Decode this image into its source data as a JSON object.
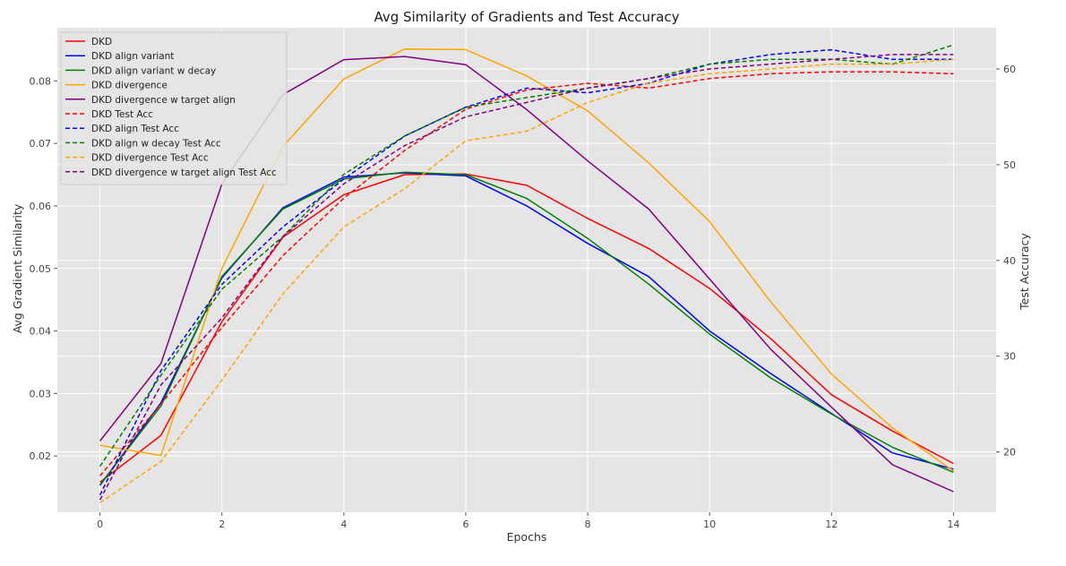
{
  "chart_data": {
    "type": "line",
    "title": "Avg Similarity of Gradients and Test Accuracy",
    "xlabel": "Epochs",
    "ylabel": "Avg Gradient Similarity",
    "ylabel_right": "Test Accuracy",
    "x": [
      0,
      1,
      2,
      3,
      4,
      5,
      6,
      7,
      8,
      9,
      10,
      11,
      12,
      13,
      14
    ],
    "xlim": [
      -0.7,
      14.7
    ],
    "ylim": [
      0.011,
      0.0885
    ],
    "ylim_right": [
      13.7,
      64.3
    ],
    "x_ticks": [
      0,
      2,
      4,
      6,
      8,
      10,
      12,
      14
    ],
    "y_ticks": [
      0.02,
      0.03,
      0.04,
      0.05,
      0.06,
      0.07,
      0.08
    ],
    "y_tick_labels": [
      "0.02",
      "0.03",
      "0.04",
      "0.05",
      "0.06",
      "0.07",
      "0.08"
    ],
    "y_right_ticks": [
      20,
      30,
      40,
      50,
      60
    ],
    "grid": true,
    "legend_position": "top-left",
    "series": [
      {
        "name": "DKD",
        "axis": "left",
        "color": "#ff0000",
        "dash": false,
        "values": [
          0.0158,
          0.0233,
          0.0415,
          0.055,
          0.0618,
          0.065,
          0.0651,
          0.0633,
          0.058,
          0.0532,
          0.0468,
          0.0388,
          0.0298,
          0.024,
          0.0188
        ]
      },
      {
        "name": "DKD align variant",
        "axis": "left",
        "color": "#0000ff",
        "dash": false,
        "values": [
          0.0153,
          0.0285,
          0.0485,
          0.0597,
          0.0646,
          0.0653,
          0.0648,
          0.06,
          0.054,
          0.0487,
          0.04,
          0.0332,
          0.0268,
          0.0205,
          0.0179
        ]
      },
      {
        "name": "DKD align variant w decay",
        "axis": "left",
        "color": "#008000",
        "dash": false,
        "values": [
          0.0154,
          0.028,
          0.0487,
          0.0595,
          0.0643,
          0.0654,
          0.065,
          0.0612,
          0.0548,
          0.0475,
          0.0395,
          0.0325,
          0.0267,
          0.0214,
          0.0174
        ]
      },
      {
        "name": "DKD divergence",
        "axis": "left",
        "color": "#ffa500",
        "dash": false,
        "values": [
          0.0217,
          0.0201,
          0.05,
          0.0695,
          0.0803,
          0.0851,
          0.085,
          0.0808,
          0.0752,
          0.0669,
          0.0575,
          0.0447,
          0.0331,
          0.0245,
          0.0176
        ]
      },
      {
        "name": "DKD divergence w target align",
        "axis": "left",
        "color": "#800080",
        "dash": false,
        "values": [
          0.0224,
          0.0348,
          0.0635,
          0.0778,
          0.0834,
          0.0839,
          0.0826,
          0.0754,
          0.0672,
          0.0595,
          0.0483,
          0.0371,
          0.0278,
          0.0186,
          0.0143
        ]
      },
      {
        "name": "DKD Test Acc",
        "axis": "right",
        "color": "#ff0000",
        "dash": true,
        "values": [
          17.5,
          25.0,
          33.0,
          40.5,
          46.5,
          51.5,
          55.8,
          57.8,
          58.5,
          58.0,
          59.0,
          59.5,
          59.7,
          59.7,
          59.5
        ]
      },
      {
        "name": "DKD align Test Acc",
        "axis": "right",
        "color": "#0000ff",
        "dash": true,
        "values": [
          15.5,
          28.5,
          37.5,
          43.5,
          48.5,
          53.0,
          56.0,
          58.0,
          57.5,
          58.5,
          60.5,
          61.5,
          62.0,
          61.0,
          61.0
        ]
      },
      {
        "name": "DKD align w decay Test Acc",
        "axis": "right",
        "color": "#008000",
        "dash": true,
        "values": [
          18.5,
          28.0,
          37.0,
          42.5,
          49.0,
          53.0,
          56.0,
          57.0,
          58.0,
          59.0,
          60.5,
          61.0,
          61.0,
          60.5,
          62.5
        ]
      },
      {
        "name": "DKD divergence Test Acc",
        "axis": "right",
        "color": "#ffa500",
        "dash": true,
        "values": [
          14.7,
          19.0,
          27.5,
          36.5,
          43.5,
          47.5,
          52.5,
          53.5,
          56.5,
          58.5,
          59.5,
          60.0,
          60.5,
          60.5,
          61.0
        ]
      },
      {
        "name": "DKD divergence w target align Test Acc",
        "axis": "right",
        "color": "#800080",
        "dash": true,
        "values": [
          15.0,
          27.0,
          34.0,
          42.5,
          48.0,
          52.0,
          55.0,
          56.5,
          58.0,
          59.0,
          60.0,
          60.5,
          61.0,
          61.5,
          61.5
        ]
      }
    ]
  }
}
